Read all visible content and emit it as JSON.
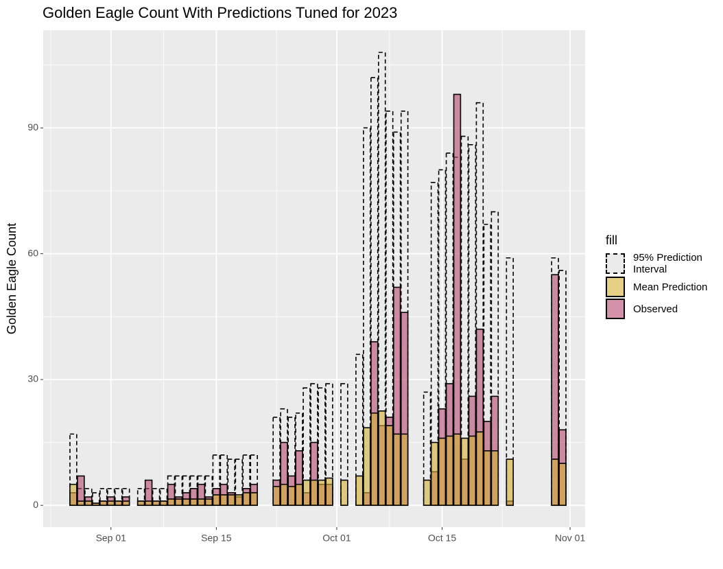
{
  "chart_data": {
    "type": "bar",
    "title": "Golden Eagle Count With Predictions Tuned for 2023",
    "y_label": "Golden Eagle Count",
    "legend_title": "fill",
    "legend_position": "right",
    "grid": true,
    "background": "#ebebeb",
    "alpha": 0.6,
    "x": [
      "2023-08-27",
      "2023-08-28",
      "2023-08-29",
      "2023-08-30",
      "2023-08-31",
      "2023-09-01",
      "2023-09-02",
      "2023-09-03",
      "2023-09-04",
      "2023-09-05",
      "2023-09-06",
      "2023-09-07",
      "2023-09-08",
      "2023-09-09",
      "2023-09-10",
      "2023-09-11",
      "2023-09-12",
      "2023-09-13",
      "2023-09-14",
      "2023-09-15",
      "2023-09-16",
      "2023-09-17",
      "2023-09-18",
      "2023-09-19",
      "2023-09-20",
      "2023-09-21",
      "2023-09-22",
      "2023-09-23",
      "2023-09-24",
      "2023-09-25",
      "2023-09-26",
      "2023-09-27",
      "2023-09-28",
      "2023-09-29",
      "2023-09-30",
      "2023-10-01",
      "2023-10-02",
      "2023-10-03",
      "2023-10-04",
      "2023-10-05",
      "2023-10-06",
      "2023-10-07",
      "2023-10-08",
      "2023-10-09",
      "2023-10-10",
      "2023-10-11",
      "2023-10-12",
      "2023-10-13",
      "2023-10-14",
      "2023-10-15",
      "2023-10-16",
      "2023-10-17",
      "2023-10-18",
      "2023-10-19",
      "2023-10-20",
      "2023-10-21",
      "2023-10-22",
      "2023-10-23",
      "2023-10-24",
      "2023-10-25",
      "2023-10-26",
      "2023-10-27",
      "2023-10-28",
      "2023-10-29",
      "2023-10-30",
      "2023-10-31"
    ],
    "series": [
      {
        "name": "95% Prediction Interval",
        "color": "#000000",
        "linetype": "dashed",
        "values": [
          17,
          4,
          4,
          3,
          4,
          4,
          4,
          4,
          0,
          4,
          4,
          4,
          4,
          7,
          7,
          7,
          7,
          7,
          7,
          12,
          12,
          11,
          11,
          12,
          12,
          0,
          0,
          21,
          23,
          21,
          22,
          28,
          29,
          28,
          29,
          0,
          29,
          0,
          36,
          90,
          102,
          108,
          94,
          89,
          94,
          0,
          0,
          27,
          77,
          80,
          84,
          83,
          88,
          86,
          96,
          67,
          70,
          0,
          59,
          0,
          0,
          0,
          0,
          0,
          59,
          56
        ]
      },
      {
        "name": "Observed",
        "color": "#b84a72",
        "values": [
          3,
          7,
          2,
          0.5,
          1,
          2,
          1,
          2,
          0,
          1,
          6,
          1,
          1,
          5,
          2,
          3,
          4,
          5,
          2,
          4,
          5,
          3,
          2,
          4,
          5,
          0,
          0,
          6,
          15,
          7,
          13,
          3,
          15,
          5,
          5,
          0,
          0,
          0,
          0,
          3,
          39,
          19,
          21,
          52,
          46,
          0,
          0,
          0,
          8,
          23,
          29,
          98,
          11,
          26,
          42,
          20,
          26,
          0,
          1,
          0,
          0,
          0,
          0,
          0,
          55,
          18
        ]
      },
      {
        "name": "Mean Prediction",
        "color": "#d4b030",
        "values": [
          5,
          1,
          1,
          0.5,
          1,
          1,
          1,
          1,
          0,
          1,
          1,
          1,
          1,
          1.5,
          1.5,
          1.5,
          1.5,
          1.5,
          1.5,
          2.5,
          2.5,
          2.5,
          2.5,
          3,
          3,
          0,
          0,
          4.5,
          5,
          4.5,
          5,
          6,
          6,
          6,
          6.5,
          0,
          6,
          0,
          7,
          18.5,
          22,
          22.5,
          19,
          17,
          17,
          0,
          0,
          6,
          15,
          16,
          16.5,
          17,
          16,
          16.5,
          17.5,
          13,
          13,
          0,
          11,
          0,
          0,
          0,
          0,
          0,
          11,
          10
        ]
      }
    ],
    "legend_order": [
      0,
      2,
      1
    ],
    "xlim": [
      "2023-08-23",
      "2023-11-03"
    ],
    "xticks": [
      {
        "value": "2023-09-01",
        "label": "Sep 01"
      },
      {
        "value": "2023-09-15",
        "label": "Sep 15"
      },
      {
        "value": "2023-10-01",
        "label": "Oct 01"
      },
      {
        "value": "2023-10-15",
        "label": "Oct 15"
      },
      {
        "value": "2023-11-01",
        "label": "Nov 01"
      }
    ],
    "x_minor_ticks": [
      "2023-08-24",
      "2023-09-08",
      "2023-09-23",
      "2023-10-08",
      "2023-10-23"
    ],
    "ylim": [
      -5.2,
      113.3
    ],
    "yticks": [
      0,
      30,
      60,
      90
    ],
    "y_minor_ticks": [
      15,
      45,
      75,
      105
    ]
  }
}
